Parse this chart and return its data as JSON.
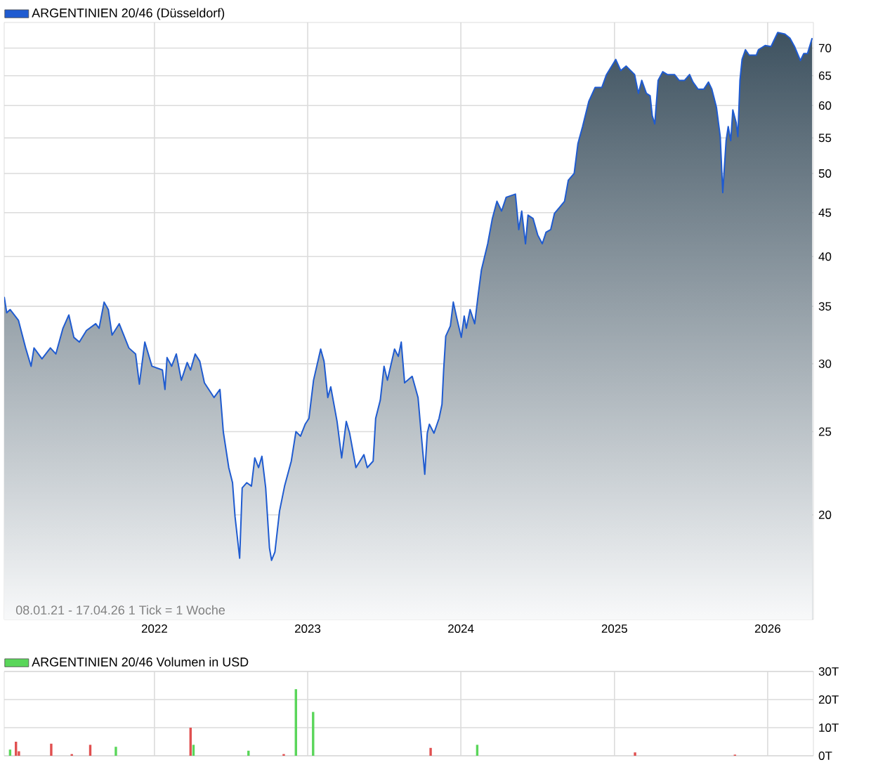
{
  "chart_data": [
    {
      "type": "area",
      "x": [
        "2021-01-08",
        "2021-01-14",
        "2021-01-22",
        "2021-02-11",
        "2021-02-28",
        "2021-03-13",
        "2021-03-20",
        "2021-04-08",
        "2021-04-28",
        "2021-05-11",
        "2021-05-28",
        "2021-06-11",
        "2021-06-23",
        "2021-07-06",
        "2021-07-23",
        "2021-08-14",
        "2021-08-22",
        "2021-09-03",
        "2021-09-13",
        "2021-09-22",
        "2021-10-09",
        "2021-11-01",
        "2021-11-17",
        "2021-11-26",
        "2021-12-09",
        "2021-12-26",
        "2022-01-20",
        "2022-01-26",
        "2022-01-31",
        "2022-02-11",
        "2022-02-22",
        "2022-03-06",
        "2022-03-20",
        "2022-03-28",
        "2022-04-08",
        "2022-04-19",
        "2022-04-30",
        "2022-05-23",
        "2022-06-06",
        "2022-06-14",
        "2022-06-27",
        "2022-07-06",
        "2022-07-12",
        "2022-07-23",
        "2022-07-29",
        "2022-08-09",
        "2022-08-20",
        "2022-08-28",
        "2022-09-06",
        "2022-09-14",
        "2022-09-23",
        "2022-10-02",
        "2022-10-07",
        "2022-10-15",
        "2022-10-26",
        "2022-11-07",
        "2022-11-23",
        "2022-12-04",
        "2022-12-15",
        "2022-12-26",
        "2023-01-04",
        "2023-01-15",
        "2023-02-01",
        "2023-02-09",
        "2023-02-18",
        "2023-02-25",
        "2023-03-12",
        "2023-03-23",
        "2023-04-03",
        "2023-04-11",
        "2023-04-26",
        "2023-05-15",
        "2023-05-23",
        "2023-06-06",
        "2023-06-12",
        "2023-06-23",
        "2023-07-02",
        "2023-07-10",
        "2023-07-27",
        "2023-08-05",
        "2023-08-12",
        "2023-08-20",
        "2023-09-07",
        "2023-09-21",
        "2023-09-29",
        "2023-10-07",
        "2023-10-13",
        "2023-10-18",
        "2023-10-29",
        "2023-11-10",
        "2023-11-17",
        "2023-11-21",
        "2023-11-26",
        "2023-12-07",
        "2023-12-14",
        "2023-12-23",
        "2024-01-02",
        "2024-01-09",
        "2024-01-14",
        "2024-01-23",
        "2024-02-03",
        "2024-02-11",
        "2024-02-19",
        "2024-03-05",
        "2024-03-16",
        "2024-03-27",
        "2024-04-07",
        "2024-04-18",
        "2024-05-10",
        "2024-05-18",
        "2024-05-25",
        "2024-06-03",
        "2024-06-09",
        "2024-06-21",
        "2024-07-02",
        "2024-07-13",
        "2024-07-22",
        "2024-08-02",
        "2024-08-11",
        "2024-08-24",
        "2024-09-04",
        "2024-09-13",
        "2024-09-27",
        "2024-10-06",
        "2024-10-17",
        "2024-11-01",
        "2024-11-16",
        "2024-12-02",
        "2024-12-13",
        "2025-01-04",
        "2025-01-16",
        "2025-01-29",
        "2025-02-18",
        "2025-02-27",
        "2025-03-07",
        "2025-03-18",
        "2025-03-27",
        "2025-04-01",
        "2025-04-07",
        "2025-04-15",
        "2025-04-26",
        "2025-05-07",
        "2025-05-24",
        "2025-06-04",
        "2025-06-17",
        "2025-06-29",
        "2025-07-07",
        "2025-07-19",
        "2025-08-02",
        "2025-08-13",
        "2025-08-21",
        "2025-09-01",
        "2025-09-10",
        "2025-09-16",
        "2025-09-24",
        "2025-09-29",
        "2025-10-05",
        "2025-10-10",
        "2025-10-18",
        "2025-10-22",
        "2025-10-27",
        "2025-11-01",
        "2025-11-09",
        "2025-11-18",
        "2025-12-05",
        "2025-12-10",
        "2025-12-26",
        "2026-01-09",
        "2026-01-25",
        "2026-02-11",
        "2026-02-23",
        "2026-03-06",
        "2026-03-20",
        "2026-03-28",
        "2026-04-06",
        "2026-04-17"
      ],
      "series": [
        {
          "name": "ARGENTINIEN 20/46 (Düsseldorf)",
          "color": "#1f5bd0",
          "values": [
            35.9,
            34.4,
            34.7,
            33.7,
            31.3,
            29.8,
            31.3,
            30.4,
            31.3,
            30.8,
            33.0,
            34.2,
            32.2,
            31.8,
            32.8,
            33.4,
            33.0,
            35.4,
            34.7,
            32.4,
            33.4,
            31.3,
            30.8,
            28.4,
            31.8,
            29.8,
            29.5,
            28.0,
            30.5,
            29.8,
            30.8,
            28.7,
            30.1,
            29.5,
            30.8,
            30.2,
            28.5,
            27.4,
            28.0,
            25.0,
            22.7,
            21.8,
            19.9,
            17.8,
            21.5,
            21.8,
            21.6,
            23.3,
            22.7,
            23.4,
            21.5,
            18.3,
            17.7,
            18.1,
            20.2,
            21.6,
            23.1,
            25.0,
            24.7,
            25.5,
            25.9,
            28.7,
            31.2,
            30.2,
            27.4,
            28.2,
            25.7,
            23.3,
            25.7,
            24.9,
            22.7,
            23.5,
            22.7,
            23.1,
            25.9,
            27.2,
            29.8,
            28.7,
            31.2,
            30.6,
            31.8,
            28.5,
            29.0,
            27.4,
            24.7,
            22.3,
            24.9,
            25.5,
            24.9,
            25.9,
            26.9,
            29.5,
            32.3,
            33.2,
            35.4,
            33.8,
            32.2,
            34.1,
            33.0,
            34.7,
            33.4,
            36.0,
            38.6,
            41.4,
            44.3,
            46.4,
            45.2,
            46.9,
            47.3,
            43.0,
            45.2,
            41.4,
            44.7,
            44.3,
            42.4,
            41.4,
            42.7,
            43.0,
            44.9,
            45.7,
            46.4,
            49.1,
            50.0,
            54.2,
            56.7,
            60.7,
            63.0,
            63.0,
            65.2,
            67.9,
            65.9,
            66.7,
            65.2,
            62.0,
            64.2,
            62.0,
            61.6,
            58.4,
            57.1,
            64.2,
            65.7,
            65.2,
            65.2,
            64.2,
            64.2,
            65.2,
            63.9,
            62.7,
            62.7,
            63.9,
            62.7,
            59.7,
            55.2,
            47.5,
            54.6,
            56.7,
            54.6,
            59.3,
            57.3,
            55.2,
            64.2,
            67.9,
            69.7,
            68.7,
            68.7,
            69.7,
            70.5,
            70.3,
            73.0,
            72.7,
            71.9,
            70.3,
            67.7,
            69.0,
            69.0,
            71.9
          ]
        }
      ],
      "xlim": [
        "2021-01-08",
        "2026-04-20"
      ],
      "xticks": [
        {
          "value": "2022-01-01",
          "label": "2022"
        },
        {
          "value": "2023-01-01",
          "label": "2023"
        },
        {
          "value": "2024-01-01",
          "label": "2024"
        },
        {
          "value": "2025-01-01",
          "label": "2025"
        },
        {
          "value": "2026-01-01",
          "label": "2026"
        }
      ],
      "ylim": [
        15.1,
        75
      ],
      "yticks": [
        20,
        25,
        30,
        35,
        40,
        45,
        50,
        55,
        60,
        65,
        70
      ],
      "log": true,
      "grid": true,
      "legend": "top left",
      "annotations": [
        "08.01.21 - 17.04.26   1 Tick = 1 Woche"
      ]
    },
    {
      "type": "bar",
      "x": [
        "2021-01-22",
        "2021-02-05",
        "2021-02-12",
        "2021-04-30",
        "2021-06-18",
        "2021-08-01",
        "2021-10-01",
        "2022-03-28",
        "2022-04-04",
        "2022-08-13",
        "2022-11-05",
        "2022-12-04",
        "2023-01-14",
        "2023-10-21",
        "2024-02-09",
        "2025-02-19",
        "2025-10-15"
      ],
      "series": [
        {
          "name": "ARGENTINIEN 20/46 Volumen in USD",
          "color": "#5ad65a",
          "colors": [
            "#5ad65a",
            "#e05050",
            "#e05050",
            "#e05050",
            "#e05050",
            "#e05050",
            "#5ad65a",
            "#e05050",
            "#5ad65a",
            "#5ad65a",
            "#e05050",
            "#5ad65a",
            "#5ad65a",
            "#e05050",
            "#5ad65a",
            "#e05050",
            "#e05050"
          ],
          "values": [
            2.2,
            5,
            1.6,
            4.3,
            0.6,
            3.9,
            3.2,
            10,
            3.9,
            1.8,
            0.6,
            23.7,
            15.6,
            2.8,
            3.9,
            1.2,
            0.4
          ]
        }
      ],
      "xlim": [
        "2021-01-08",
        "2026-04-20"
      ],
      "xticks": [
        {
          "value": "2022-01-01",
          "label": null
        },
        {
          "value": "2023-01-01",
          "label": null
        },
        {
          "value": "2024-01-01",
          "label": null
        },
        {
          "value": "2025-01-01",
          "label": null
        },
        {
          "value": "2026-01-01",
          "label": null
        }
      ],
      "ylim": [
        0,
        30
      ],
      "yticks": [
        {
          "value": 0,
          "label": "0T"
        },
        {
          "value": 10,
          "label": "10T"
        },
        {
          "value": 20,
          "label": "20T"
        },
        {
          "value": 30,
          "label": "30T"
        }
      ],
      "grid": true,
      "legend": "top left",
      "tick_labels": "y"
    }
  ]
}
